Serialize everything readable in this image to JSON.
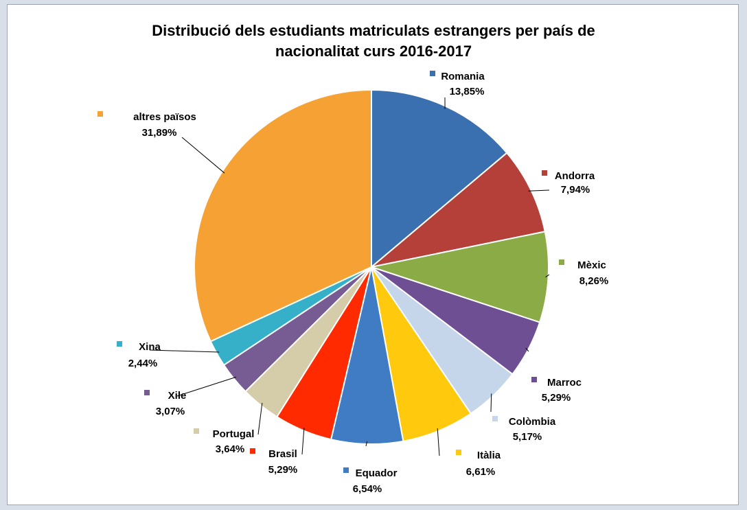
{
  "chart_data": {
    "type": "pie",
    "title": "Distribució dels estudiants matriculats estrangers per país de nacionalitat curs 2016-2017",
    "categories": [
      "Romania",
      "Andorra",
      "Mèxic",
      "Marroc",
      "Colòmbia",
      "Itàlia",
      "Equador",
      "Brasil",
      "Portugal",
      "Xile",
      "Xina",
      "altres països"
    ],
    "values": [
      13.85,
      7.94,
      8.26,
      5.29,
      5.17,
      6.61,
      6.54,
      5.29,
      3.64,
      3.07,
      2.44,
      31.89
    ],
    "value_labels": [
      "13,85%",
      "7,94%",
      "8,26%",
      "5,29%",
      "5,17%",
      "6,61%",
      "6,54%",
      "5,29%",
      "3,64%",
      "3,07%",
      "2,44%",
      "31,89%"
    ],
    "colors": [
      "#3a6fb0",
      "#b5403a",
      "#8aab45",
      "#6e4f93",
      "#c5d5ea",
      "#ffc90e",
      "#3f7cc4",
      "#ff2a00",
      "#d5ccaa",
      "#775b93",
      "#35b0c8",
      "#f6a134"
    ]
  }
}
